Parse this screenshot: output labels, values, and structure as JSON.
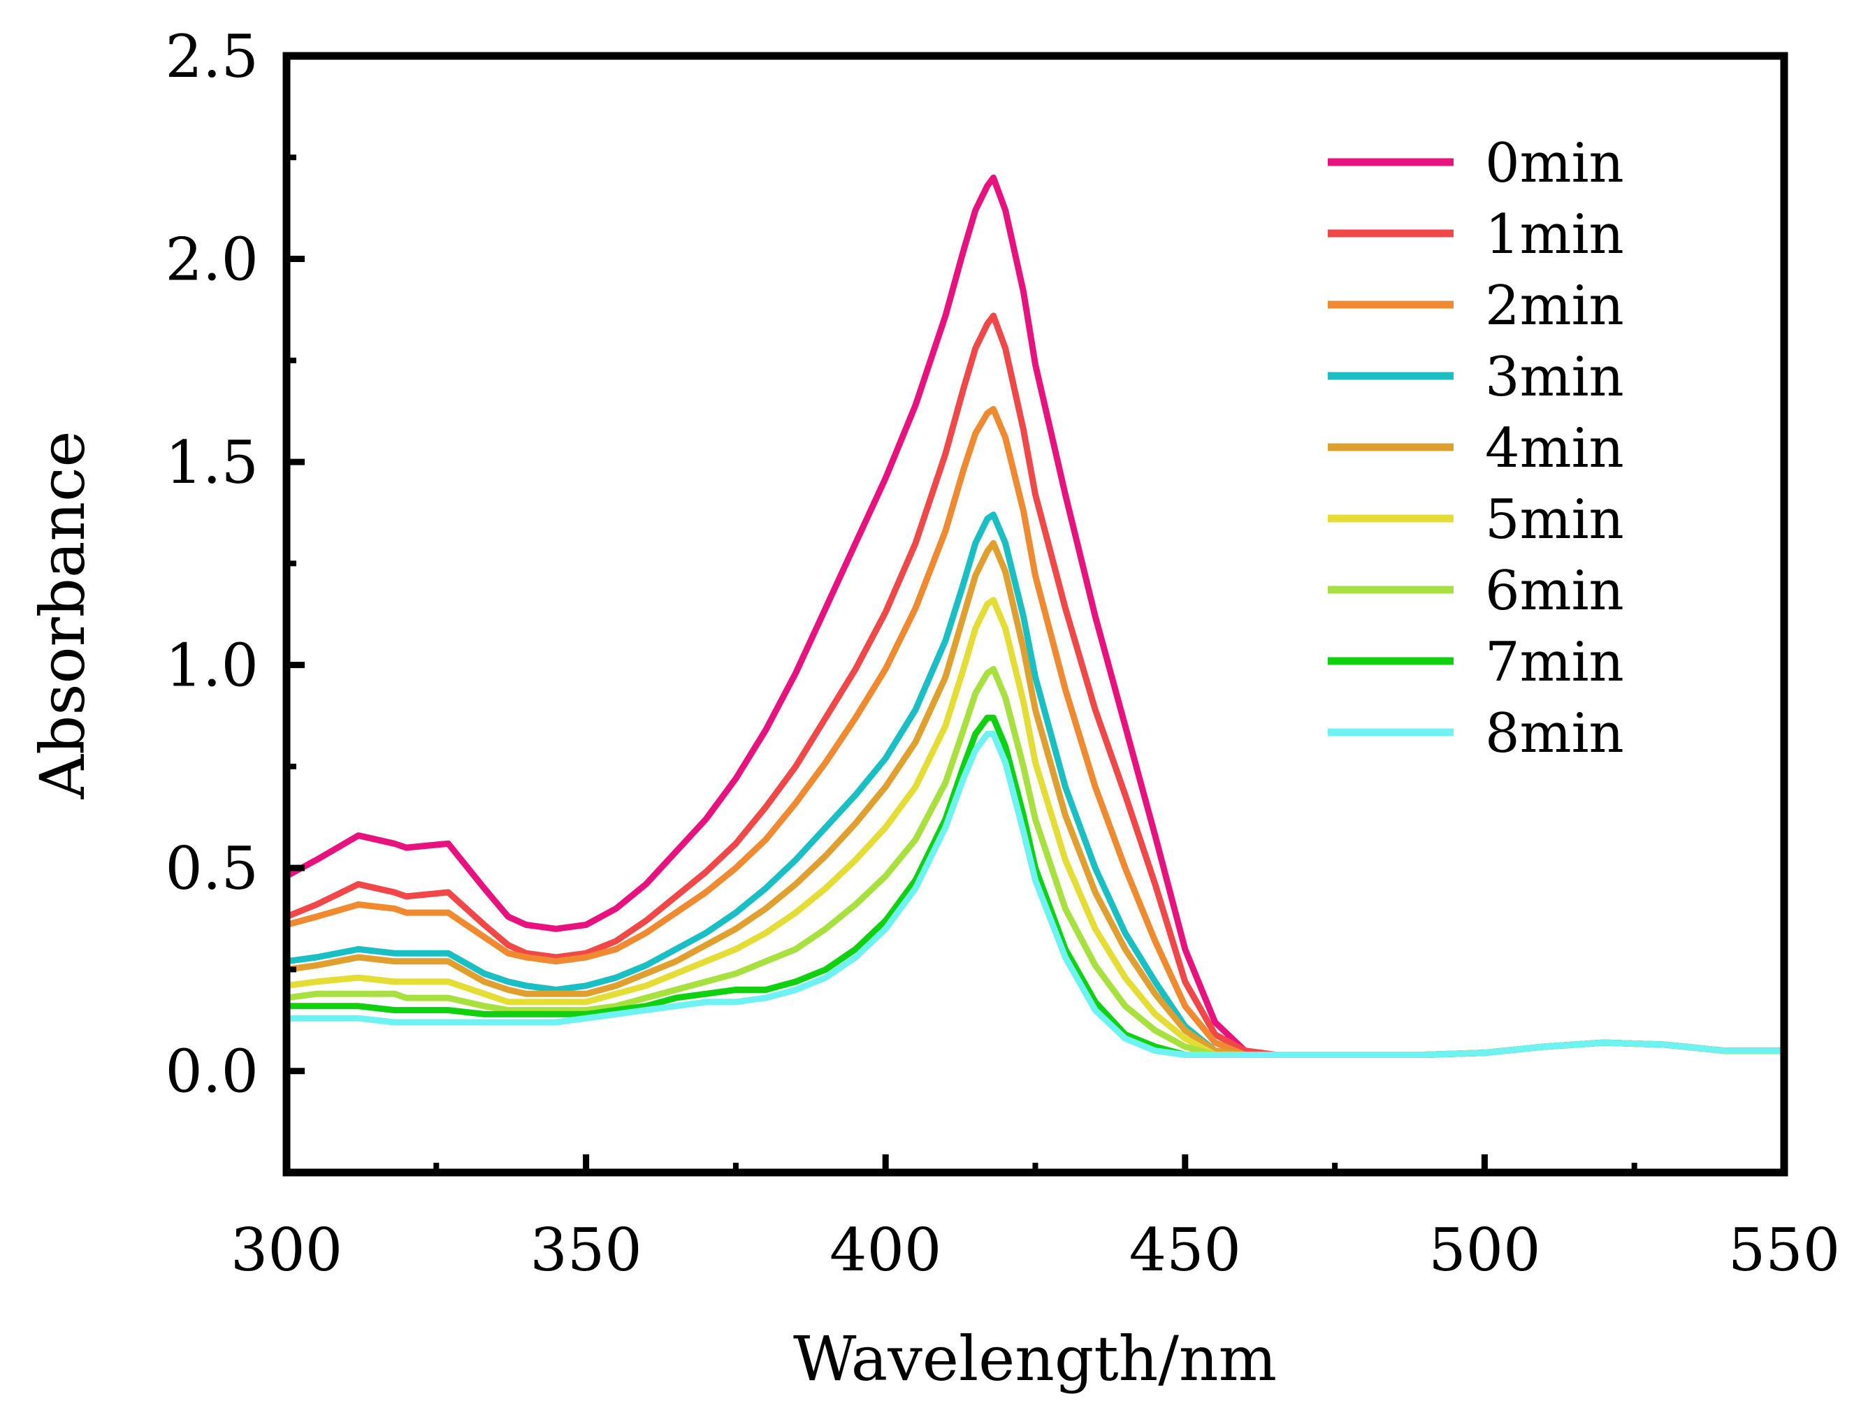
{
  "chart_data": {
    "type": "line",
    "title": "",
    "xlabel": "Wavelength/nm",
    "ylabel": "Absorbance",
    "xlim": [
      300,
      550
    ],
    "ylim": [
      -0.25,
      2.5
    ],
    "x_ticks": [
      300,
      350,
      400,
      450,
      500,
      550
    ],
    "x_tick_labels": [
      "300",
      "350",
      "400",
      "450",
      "500",
      "550"
    ],
    "y_ticks": [
      0.0,
      0.5,
      1.0,
      1.5,
      2.0,
      2.5
    ],
    "y_tick_labels": [
      "0.0",
      "0.5",
      "1.0",
      "1.5",
      "2.0",
      "2.5"
    ],
    "grid": false,
    "legend_position": "top-right",
    "x": [
      300,
      305,
      312,
      318,
      320,
      327,
      333,
      337,
      340,
      345,
      350,
      355,
      360,
      365,
      370,
      375,
      380,
      385,
      390,
      395,
      400,
      405,
      410,
      413,
      415,
      417,
      418,
      420,
      423,
      425,
      430,
      435,
      440,
      445,
      450,
      455,
      460,
      465,
      470,
      480,
      490,
      500,
      510,
      520,
      530,
      540,
      550
    ],
    "series": [
      {
        "name": "0min",
        "color": "#E8127E",
        "values": [
          0.48,
          0.52,
          0.58,
          0.56,
          0.55,
          0.56,
          0.45,
          0.38,
          0.36,
          0.35,
          0.36,
          0.4,
          0.46,
          0.54,
          0.62,
          0.72,
          0.84,
          0.98,
          1.14,
          1.3,
          1.46,
          1.64,
          1.86,
          2.02,
          2.12,
          2.18,
          2.2,
          2.12,
          1.92,
          1.74,
          1.42,
          1.12,
          0.85,
          0.58,
          0.3,
          0.12,
          0.05,
          0.04,
          0.04,
          0.04,
          0.04,
          0.045,
          0.06,
          0.07,
          0.065,
          0.05,
          0.05
        ]
      },
      {
        "name": "1min",
        "color": "#F04848",
        "values": [
          0.38,
          0.41,
          0.46,
          0.44,
          0.43,
          0.44,
          0.36,
          0.31,
          0.29,
          0.28,
          0.29,
          0.32,
          0.37,
          0.43,
          0.49,
          0.56,
          0.65,
          0.75,
          0.87,
          0.99,
          1.13,
          1.3,
          1.52,
          1.68,
          1.78,
          1.84,
          1.86,
          1.78,
          1.58,
          1.42,
          1.14,
          0.89,
          0.68,
          0.46,
          0.22,
          0.09,
          0.05,
          0.04,
          0.04,
          0.04,
          0.04,
          0.045,
          0.06,
          0.07,
          0.065,
          0.05,
          0.05
        ]
      },
      {
        "name": "2min",
        "color": "#F08A30",
        "values": [
          0.36,
          0.38,
          0.41,
          0.4,
          0.39,
          0.39,
          0.33,
          0.29,
          0.28,
          0.27,
          0.28,
          0.3,
          0.34,
          0.39,
          0.44,
          0.5,
          0.57,
          0.66,
          0.76,
          0.87,
          0.99,
          1.14,
          1.33,
          1.48,
          1.57,
          1.62,
          1.63,
          1.56,
          1.38,
          1.22,
          0.94,
          0.7,
          0.5,
          0.32,
          0.16,
          0.07,
          0.04,
          0.04,
          0.04,
          0.04,
          0.04,
          0.045,
          0.06,
          0.07,
          0.065,
          0.05,
          0.05
        ]
      },
      {
        "name": "3min",
        "color": "#1ABFC4",
        "values": [
          0.27,
          0.28,
          0.3,
          0.29,
          0.29,
          0.29,
          0.24,
          0.22,
          0.21,
          0.2,
          0.21,
          0.23,
          0.26,
          0.3,
          0.34,
          0.39,
          0.45,
          0.52,
          0.6,
          0.68,
          0.77,
          0.89,
          1.06,
          1.2,
          1.3,
          1.36,
          1.37,
          1.3,
          1.12,
          0.97,
          0.7,
          0.5,
          0.34,
          0.22,
          0.11,
          0.05,
          0.04,
          0.04,
          0.04,
          0.04,
          0.04,
          0.045,
          0.06,
          0.07,
          0.065,
          0.05,
          0.05
        ]
      },
      {
        "name": "4min",
        "color": "#E0A030",
        "values": [
          0.25,
          0.26,
          0.28,
          0.27,
          0.27,
          0.27,
          0.22,
          0.2,
          0.19,
          0.19,
          0.19,
          0.21,
          0.24,
          0.27,
          0.31,
          0.35,
          0.4,
          0.46,
          0.53,
          0.61,
          0.7,
          0.81,
          0.97,
          1.12,
          1.22,
          1.28,
          1.3,
          1.23,
          1.04,
          0.89,
          0.63,
          0.44,
          0.3,
          0.19,
          0.1,
          0.05,
          0.04,
          0.04,
          0.04,
          0.04,
          0.04,
          0.045,
          0.06,
          0.07,
          0.065,
          0.05,
          0.05
        ]
      },
      {
        "name": "5min",
        "color": "#E3DD35",
        "values": [
          0.21,
          0.22,
          0.23,
          0.22,
          0.22,
          0.22,
          0.19,
          0.17,
          0.17,
          0.17,
          0.17,
          0.19,
          0.21,
          0.24,
          0.27,
          0.3,
          0.34,
          0.39,
          0.45,
          0.52,
          0.6,
          0.7,
          0.85,
          0.99,
          1.09,
          1.15,
          1.16,
          1.09,
          0.91,
          0.76,
          0.52,
          0.35,
          0.23,
          0.14,
          0.08,
          0.04,
          0.04,
          0.04,
          0.04,
          0.04,
          0.04,
          0.045,
          0.06,
          0.07,
          0.065,
          0.05,
          0.05
        ]
      },
      {
        "name": "6min",
        "color": "#A8E040",
        "values": [
          0.18,
          0.19,
          0.19,
          0.19,
          0.18,
          0.18,
          0.16,
          0.15,
          0.15,
          0.15,
          0.15,
          0.16,
          0.18,
          0.2,
          0.22,
          0.24,
          0.27,
          0.3,
          0.35,
          0.41,
          0.48,
          0.57,
          0.71,
          0.84,
          0.93,
          0.98,
          0.99,
          0.92,
          0.75,
          0.62,
          0.4,
          0.26,
          0.16,
          0.1,
          0.06,
          0.04,
          0.04,
          0.04,
          0.04,
          0.04,
          0.04,
          0.045,
          0.06,
          0.07,
          0.065,
          0.05,
          0.05
        ]
      },
      {
        "name": "7min",
        "color": "#10D010",
        "values": [
          0.16,
          0.16,
          0.16,
          0.15,
          0.15,
          0.15,
          0.14,
          0.14,
          0.14,
          0.14,
          0.14,
          0.15,
          0.16,
          0.18,
          0.19,
          0.2,
          0.2,
          0.22,
          0.25,
          0.3,
          0.37,
          0.47,
          0.62,
          0.75,
          0.83,
          0.87,
          0.87,
          0.8,
          0.63,
          0.5,
          0.3,
          0.17,
          0.09,
          0.06,
          0.04,
          0.04,
          0.04,
          0.04,
          0.04,
          0.04,
          0.04,
          0.045,
          0.06,
          0.07,
          0.065,
          0.05,
          0.05
        ]
      },
      {
        "name": "8min",
        "color": "#6FF2F2",
        "values": [
          0.13,
          0.13,
          0.13,
          0.12,
          0.12,
          0.12,
          0.12,
          0.12,
          0.12,
          0.12,
          0.13,
          0.14,
          0.15,
          0.16,
          0.17,
          0.17,
          0.18,
          0.2,
          0.23,
          0.28,
          0.35,
          0.45,
          0.6,
          0.72,
          0.79,
          0.83,
          0.83,
          0.76,
          0.59,
          0.47,
          0.28,
          0.15,
          0.08,
          0.05,
          0.04,
          0.04,
          0.04,
          0.04,
          0.04,
          0.04,
          0.04,
          0.045,
          0.06,
          0.07,
          0.065,
          0.05,
          0.05
        ]
      }
    ]
  }
}
